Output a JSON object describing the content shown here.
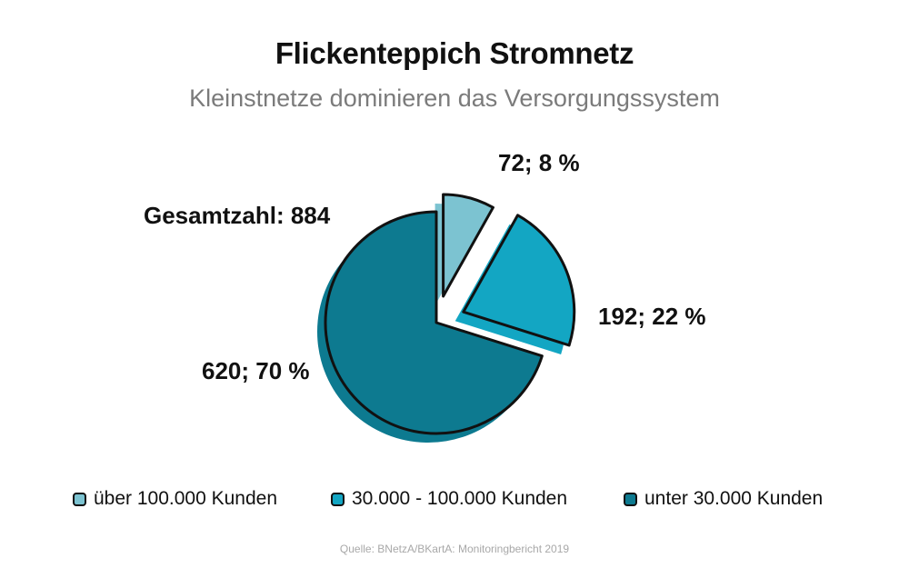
{
  "chart_data": {
    "type": "pie",
    "title": "Flickenteppich Stromnetz",
    "subtitle": "Kleinstnetze dominieren das Versorgungssystem",
    "total_label": "Gesamtzahl: 884",
    "slices": [
      {
        "name": "über 100.000 Kunden",
        "value": 72,
        "percent": 8,
        "label": "72; 8 %",
        "color": "#7cc3d1",
        "shadow": "#7cc3d1"
      },
      {
        "name": "30.000 - 100.000 Kunden",
        "value": 192,
        "percent": 22,
        "label": "192; 22 %",
        "color": "#13a6c3",
        "shadow": "#13a6c3"
      },
      {
        "name": "unter 30.000 Kunden",
        "value": 620,
        "percent": 70,
        "label": "620; 70 %",
        "color": "#0d7a90",
        "shadow": "#0d7a90"
      }
    ],
    "legend_position": "bottom"
  },
  "source": "Quelle: BNetzA/BKartA: Monitoringbericht 2019"
}
